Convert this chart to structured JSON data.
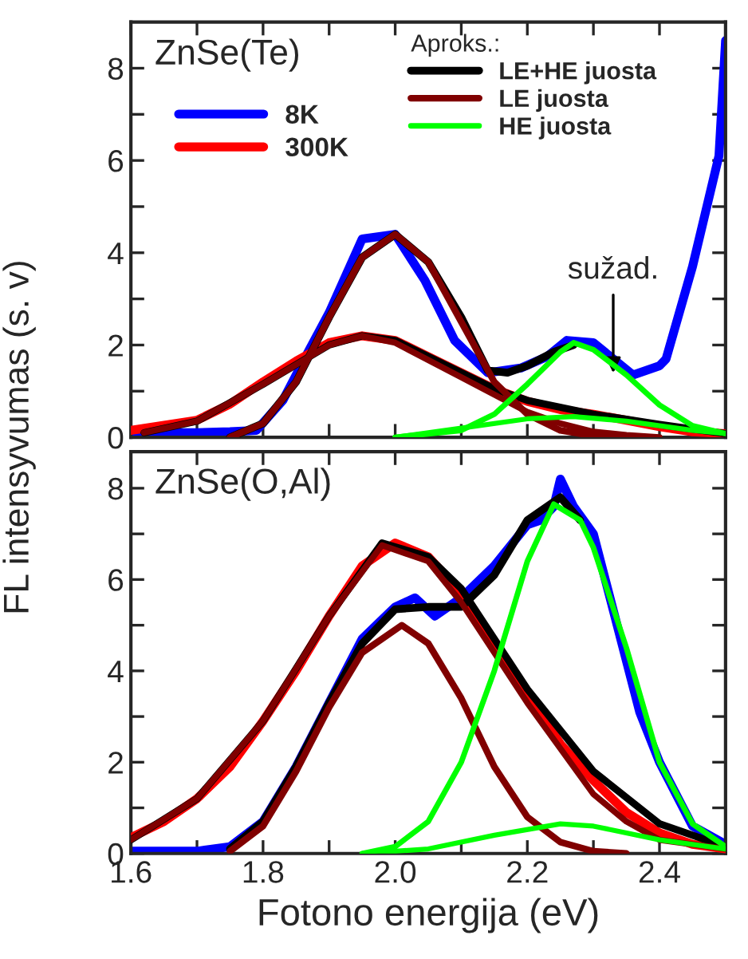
{
  "chart_data": [
    {
      "type": "line",
      "title": "ZnSe(Te)",
      "ylabel": "FL intensyvumas (s. v)",
      "legend_title": "Aproks.:",
      "legend": "top right",
      "tick_labels": "y",
      "xlim": [
        1.6,
        2.5
      ],
      "ylim": [
        0,
        9
      ],
      "xticks": [
        1.6,
        {
          "value": 1.7,
          "label": null
        },
        1.8,
        {
          "value": 1.9,
          "label": null
        },
        2.0,
        {
          "value": 2.1,
          "label": null
        },
        2.2,
        {
          "value": 2.3,
          "label": null
        },
        2.4
      ],
      "yticks": [
        0,
        {
          "value": 1,
          "label": null
        },
        2,
        {
          "value": 3,
          "label": null
        },
        4,
        {
          "value": 5,
          "label": null
        },
        6,
        {
          "value": 7,
          "label": null
        },
        8
      ],
      "annotations": [
        {
          "text": "sužad.",
          "x": 2.33,
          "y": 1.3
        }
      ],
      "series": [
        {
          "name": "8K",
          "color": "#0000ff",
          "x": [
            1.6,
            1.7,
            1.75,
            1.79,
            1.83,
            1.87,
            1.9,
            1.95,
            2.0,
            2.045,
            2.09,
            2.14,
            2.19,
            2.23,
            2.26,
            2.3,
            2.33,
            2.36,
            2.4,
            2.41,
            2.45,
            2.47,
            2.49,
            2.5
          ],
          "values": [
            0.1,
            0.1,
            0.12,
            0.15,
            0.8,
            1.9,
            2.7,
            4.3,
            4.4,
            3.4,
            2.1,
            1.4,
            1.5,
            1.75,
            2.1,
            2.05,
            null,
            1.35,
            1.55,
            1.7,
            3.7,
            4.9,
            6.1,
            8.6
          ]
        },
        {
          "name": "300K",
          "color": "#ff0000",
          "x": [
            1.6,
            1.7,
            1.75,
            1.8,
            1.85,
            1.9,
            1.95,
            2.0,
            2.05,
            2.1,
            2.15,
            2.2,
            2.25,
            2.3,
            2.35,
            2.4,
            2.45,
            2.5
          ],
          "values": [
            0.15,
            0.37,
            0.72,
            1.2,
            1.65,
            2.05,
            2.2,
            2.1,
            1.75,
            1.4,
            1.05,
            0.78,
            0.6,
            0.5,
            0.37,
            0.23,
            0.12,
            0.08
          ]
        },
        {
          "name": "LE+HE juosta",
          "color": "#000000",
          "x": [
            1.75,
            1.8,
            1.85,
            1.9,
            1.95,
            2.0,
            2.05,
            2.1,
            2.14,
            2.17,
            2.2,
            2.24,
            2.27
          ],
          "values": [
            0.0,
            0.3,
            1.2,
            2.6,
            3.9,
            4.4,
            3.8,
            2.6,
            1.45,
            1.4,
            1.55,
            1.85,
            2.0
          ]
        },
        {
          "color": "#000000",
          "x": [
            1.62,
            1.7,
            1.8,
            1.9,
            1.95,
            2.0,
            2.1,
            2.15,
            2.2,
            2.3,
            2.4,
            2.5
          ],
          "values": [
            0.1,
            0.35,
            1.15,
            2.0,
            2.2,
            2.1,
            1.4,
            1.05,
            0.8,
            0.5,
            0.28,
            0.08
          ]
        },
        {
          "name": "LE juosta",
          "color": "#800000",
          "x": [
            1.75,
            1.8,
            1.85,
            1.9,
            1.95,
            2.0,
            2.05,
            2.1,
            2.15,
            2.2,
            2.25,
            2.3,
            2.35
          ],
          "values": [
            0.0,
            0.3,
            1.2,
            2.6,
            3.9,
            4.4,
            3.8,
            2.5,
            1.2,
            0.5,
            0.15,
            0.03,
            0.0
          ]
        },
        {
          "color": "#800000",
          "x": [
            1.62,
            1.7,
            1.8,
            1.9,
            1.95,
            2.0,
            2.1,
            2.2,
            2.25,
            2.3,
            2.35,
            2.4
          ],
          "values": [
            0.1,
            0.35,
            1.15,
            2.0,
            2.2,
            2.05,
            1.3,
            0.55,
            0.3,
            0.12,
            0.05,
            0.0
          ]
        },
        {
          "name": "HE juosta",
          "color": "#00ff00",
          "x": [
            2.0,
            2.1,
            2.15,
            2.2,
            2.25,
            2.27,
            2.3,
            2.35,
            2.4,
            2.45,
            2.5
          ],
          "values": [
            0.0,
            0.15,
            0.5,
            1.15,
            1.85,
            2.05,
            1.9,
            1.35,
            0.7,
            0.25,
            0.08
          ]
        },
        {
          "color": "#00ff00",
          "x": [
            2.0,
            2.1,
            2.2,
            2.27,
            2.35,
            2.45,
            2.5
          ],
          "values": [
            0.0,
            0.2,
            0.4,
            0.45,
            0.35,
            0.15,
            0.08
          ]
        }
      ]
    },
    {
      "type": "line",
      "title": "ZnSe(O,Al)",
      "xlabel": "Fotono energija (eV)",
      "xlim": [
        1.6,
        2.5
      ],
      "ylim": [
        0,
        8.8
      ],
      "xticks": [
        1.6,
        {
          "value": 1.7,
          "label": null
        },
        1.8,
        {
          "value": 1.9,
          "label": null
        },
        {
          "value": 2.0,
          "label": "2.0"
        },
        {
          "value": 2.1,
          "label": null
        },
        2.2,
        {
          "value": 2.3,
          "label": null
        },
        2.4
      ],
      "yticks": [
        0,
        {
          "value": 1,
          "label": null
        },
        2,
        {
          "value": 3,
          "label": null
        },
        4,
        {
          "value": 5,
          "label": null
        },
        6,
        {
          "value": 7,
          "label": null
        },
        8
      ],
      "series": [
        {
          "color": "#0000ff",
          "x": [
            1.6,
            1.7,
            1.75,
            1.8,
            1.85,
            1.9,
            1.95,
            2.0,
            2.03,
            2.06,
            2.1,
            2.15,
            2.2,
            2.22,
            2.24,
            2.25,
            2.27,
            2.3,
            2.33,
            2.37,
            2.4,
            2.45,
            2.5
          ],
          "values": [
            0.05,
            0.05,
            0.15,
            0.7,
            1.9,
            3.3,
            4.7,
            5.4,
            5.6,
            5.2,
            5.6,
            6.3,
            7.2,
            7.3,
            7.6,
            8.2,
            7.6,
            7.0,
            null,
            3.1,
            2.0,
            0.6,
            0.2
          ]
        },
        {
          "color": "#ff0000",
          "x": [
            1.6,
            1.65,
            1.7,
            1.75,
            1.8,
            1.85,
            1.9,
            1.95,
            2.0,
            2.05,
            2.1,
            2.15,
            2.2,
            2.25,
            2.3,
            2.35,
            2.4,
            2.45,
            2.5
          ],
          "values": [
            0.35,
            0.7,
            1.2,
            1.9,
            2.9,
            4.0,
            5.2,
            6.3,
            6.8,
            6.5,
            5.7,
            4.6,
            3.5,
            2.4,
            1.6,
            0.9,
            0.45,
            0.2,
            0.1
          ]
        },
        {
          "color": "#000000",
          "x": [
            1.75,
            1.8,
            1.85,
            1.9,
            1.95,
            2.0,
            2.05,
            2.1,
            2.15,
            2.2,
            2.25,
            2.28
          ],
          "values": [
            0.1,
            0.7,
            1.9,
            3.3,
            4.6,
            5.35,
            5.4,
            5.4,
            6.1,
            7.3,
            7.8,
            7.3
          ]
        },
        {
          "color": "#000000",
          "x": [
            1.6,
            1.7,
            1.8,
            1.9,
            1.98,
            2.05,
            2.1,
            2.2,
            2.3,
            2.4,
            2.5
          ],
          "values": [
            0.3,
            1.2,
            2.9,
            5.2,
            6.8,
            6.5,
            5.8,
            3.6,
            1.8,
            0.65,
            0.15
          ]
        },
        {
          "color": "#800000",
          "x": [
            1.75,
            1.8,
            1.85,
            1.9,
            1.95,
            2.01,
            2.05,
            2.1,
            2.15,
            2.2,
            2.25,
            2.3,
            2.35
          ],
          "values": [
            0.05,
            0.6,
            1.8,
            3.2,
            4.4,
            5.0,
            4.6,
            3.4,
            1.9,
            0.8,
            0.25,
            0.05,
            0.0
          ]
        },
        {
          "color": "#800000",
          "x": [
            1.6,
            1.7,
            1.8,
            1.9,
            1.98,
            2.05,
            2.1,
            2.2,
            2.3,
            2.35,
            2.4,
            2.5
          ],
          "values": [
            0.3,
            1.2,
            2.9,
            5.2,
            6.75,
            6.4,
            5.5,
            3.3,
            1.3,
            0.7,
            0.3,
            0.1
          ]
        },
        {
          "color": "#00ff00",
          "x": [
            1.95,
            2.0,
            2.05,
            2.1,
            2.15,
            2.2,
            2.24,
            2.28,
            2.3,
            2.35,
            2.4,
            2.45,
            2.5
          ],
          "values": [
            0.0,
            0.15,
            0.7,
            2.0,
            4.0,
            6.4,
            7.65,
            7.3,
            6.7,
            4.5,
            2.0,
            0.65,
            0.15
          ]
        },
        {
          "color": "#00ff00",
          "x": [
            1.95,
            2.05,
            2.15,
            2.25,
            2.3,
            2.4,
            2.5
          ],
          "values": [
            0.0,
            0.1,
            0.4,
            0.65,
            0.6,
            0.3,
            0.1
          ]
        }
      ]
    }
  ]
}
